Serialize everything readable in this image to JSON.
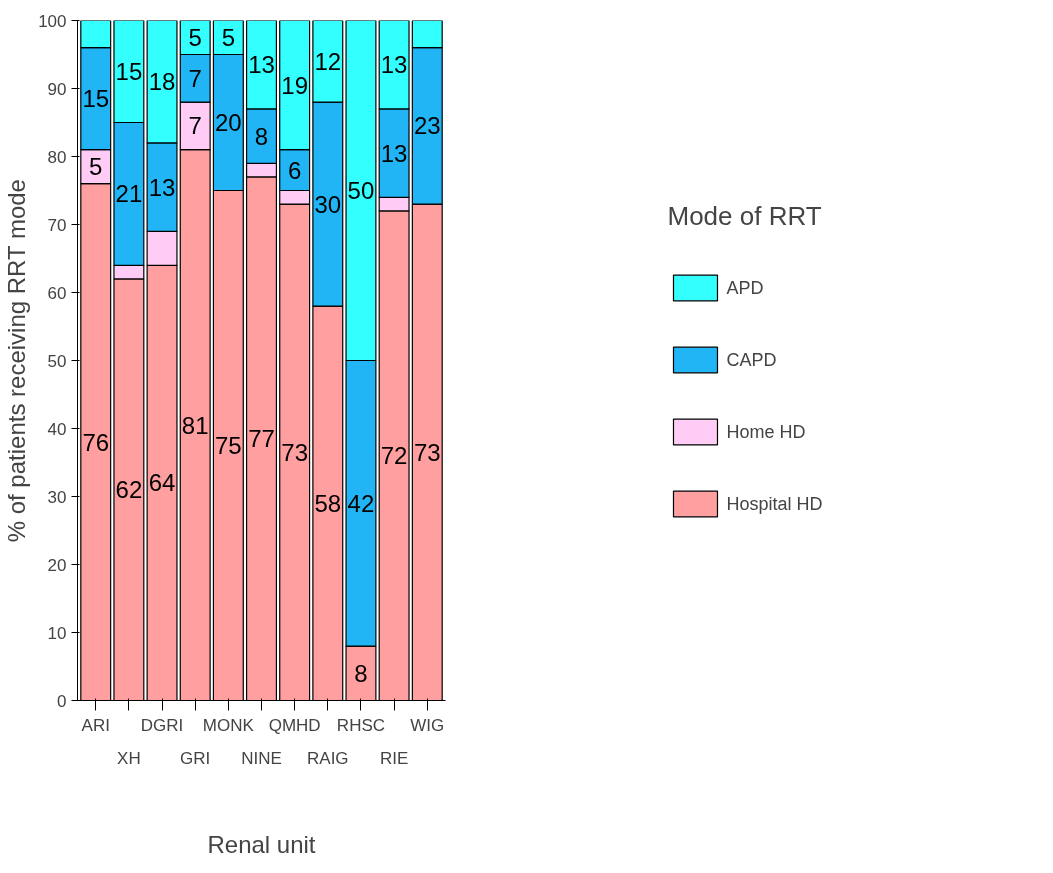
{
  "chart_data": {
    "type": "bar",
    "stacked": true,
    "xlabel": "Renal unit",
    "ylabel": "% of patients receiving RRT mode",
    "legend_title": "Mode of RRT",
    "legend": "right",
    "grid": false,
    "categories": [
      "ARI",
      "XH",
      "DGRI",
      "GRI",
      "MONK",
      "NINE",
      "QMHD",
      "RAIG",
      "RHSC",
      "RIE",
      "WIG"
    ],
    "ylim": [
      0,
      100
    ],
    "yticks": [
      0,
      10,
      20,
      30,
      40,
      50,
      60,
      70,
      80,
      90,
      100
    ],
    "series": [
      {
        "name": "Hospital HD",
        "color": "#ff9f9f",
        "values": [
          76,
          62,
          64,
          81,
          75,
          77,
          73,
          58,
          8,
          72,
          73
        ],
        "value_labels": [
          "76",
          "62",
          "64",
          "81",
          "75",
          "77",
          "73",
          "58",
          "8",
          "72",
          "73"
        ]
      },
      {
        "name": "Home HD",
        "color": "#ffccf5",
        "values": [
          5,
          2,
          5,
          7,
          null,
          2,
          2,
          null,
          null,
          2,
          null
        ],
        "value_labels": [
          "5",
          null,
          null,
          "7",
          null,
          null,
          null,
          null,
          null,
          null,
          null
        ]
      },
      {
        "name": "CAPD",
        "color": "#22b5f5",
        "values": [
          15,
          21,
          13,
          7,
          20,
          8,
          6,
          30,
          42,
          13,
          23
        ],
        "value_labels": [
          "15",
          "21",
          "13",
          "7",
          "20",
          "8",
          "6",
          "30",
          "42",
          "13",
          "23"
        ]
      },
      {
        "name": "APD",
        "color": "#33ffff",
        "values": [
          4,
          15,
          18,
          5,
          5,
          13,
          19,
          12,
          50,
          13,
          4
        ],
        "value_labels": [
          null,
          "15",
          "18",
          "5",
          "5",
          "13",
          "19",
          "12",
          "50",
          "13",
          null
        ]
      }
    ]
  }
}
